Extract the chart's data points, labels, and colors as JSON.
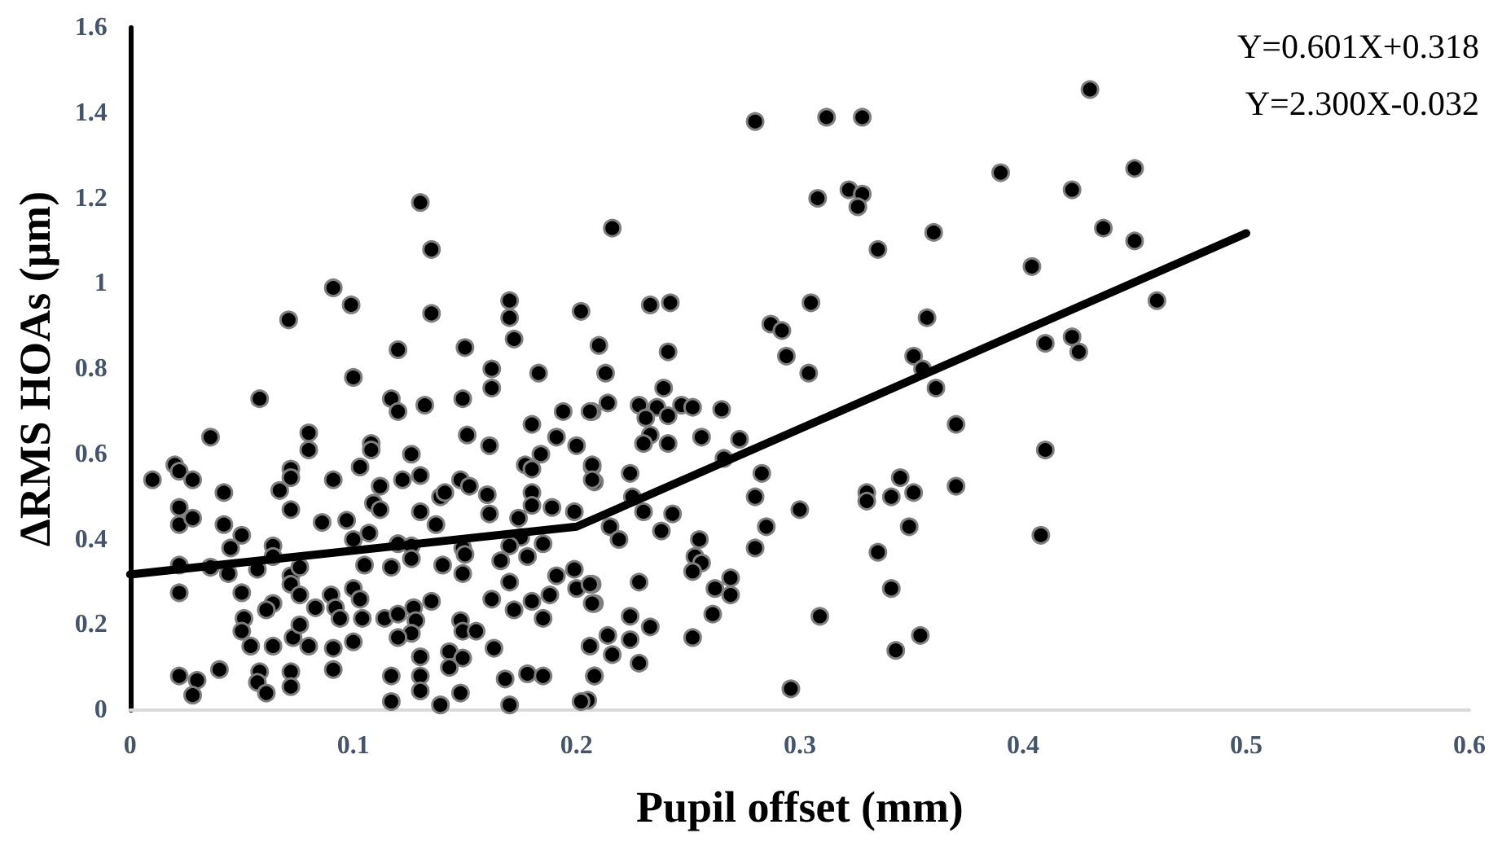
{
  "chart_data": {
    "type": "scatter",
    "xlabel": "Pupil offset (mm)",
    "ylabel": "ΔRMS HOAs (μm)",
    "xlim": [
      0,
      0.6
    ],
    "xticks": [
      0,
      0.1,
      0.2,
      0.3,
      0.4,
      0.5,
      0.6
    ],
    "ylim": [
      0,
      1.6
    ],
    "yticks": [
      0,
      0.2,
      0.4,
      0.6,
      0.8,
      1,
      1.2,
      1.4,
      1.6
    ],
    "grid": false,
    "marker": "circle",
    "annotations": [
      "Y=0.601X+0.318",
      "Y=2.300X-0.032"
    ],
    "series": [
      {
        "color": "#000000",
        "x": [
          0.43,
          0.45,
          0.422,
          0.436,
          0.45,
          0.46,
          0.41,
          0.422,
          0.425,
          0.41,
          0.408,
          0.28,
          0.312,
          0.328,
          0.39,
          0.308,
          0.322,
          0.328,
          0.326,
          0.216,
          0.335,
          0.36,
          0.404,
          0.233,
          0.242,
          0.305,
          0.287,
          0.292,
          0.294,
          0.241,
          0.21,
          0.304,
          0.357,
          0.351,
          0.355,
          0.361,
          0.37,
          0.213,
          0.214,
          0.207,
          0.239,
          0.228,
          0.236,
          0.247,
          0.252,
          0.265,
          0.231,
          0.241,
          0.233,
          0.23,
          0.241,
          0.256,
          0.273,
          0.266,
          0.207,
          0.208,
          0.224,
          0.283,
          0.28,
          0.225,
          0.23,
          0.243,
          0.3,
          0.33,
          0.33,
          0.341,
          0.345,
          0.351,
          0.37,
          0.349,
          0.215,
          0.219,
          0.238,
          0.285,
          0.28,
          0.255,
          0.253,
          0.256,
          0.252,
          0.269,
          0.262,
          0.269,
          0.261,
          0.228,
          0.207,
          0.208,
          0.335,
          0.341,
          0.309,
          0.224,
          0.233,
          0.214,
          0.224,
          0.216,
          0.228,
          0.252,
          0.208,
          0.343,
          0.354,
          0.296,
          0.205,
          0.135,
          0.091,
          0.099,
          0.071,
          0.135,
          0.17,
          0.17,
          0.172,
          0.202,
          0.12,
          0.15,
          0.1,
          0.162,
          0.162,
          0.183,
          0.117,
          0.12,
          0.132,
          0.149,
          0.058,
          0.194,
          0.206,
          0.036,
          0.08,
          0.08,
          0.151,
          0.161,
          0.18,
          0.191,
          0.2,
          0.184,
          0.108,
          0.108,
          0.126,
          0.02,
          0.022,
          0.01,
          0.028,
          0.072,
          0.072,
          0.103,
          0.091,
          0.13,
          0.122,
          0.112,
          0.148,
          0.152,
          0.177,
          0.18,
          0.207,
          0.207,
          0.042,
          0.022,
          0.067,
          0.072,
          0.086,
          0.097,
          0.109,
          0.112,
          0.13,
          0.137,
          0.139,
          0.141,
          0.16,
          0.161,
          0.18,
          0.18,
          0.189,
          0.199,
          0.022,
          0.028,
          0.042,
          0.05,
          0.045,
          0.064,
          0.1,
          0.107,
          0.12,
          0.126,
          0.149,
          0.174,
          0.175,
          0.185,
          0.17,
          0.022,
          0.036,
          0.044,
          0.057,
          0.064,
          0.072,
          0.076,
          0.105,
          0.117,
          0.126,
          0.14,
          0.149,
          0.15,
          0.166,
          0.178,
          0.17,
          0.191,
          0.199,
          0.2,
          0.022,
          0.05,
          0.064,
          0.061,
          0.072,
          0.076,
          0.083,
          0.09,
          0.092,
          0.094,
          0.1,
          0.103,
          0.104,
          0.114,
          0.12,
          0.127,
          0.128,
          0.126,
          0.12,
          0.135,
          0.148,
          0.149,
          0.155,
          0.162,
          0.172,
          0.18,
          0.185,
          0.188,
          0.206,
          0.207,
          0.051,
          0.05,
          0.054,
          0.064,
          0.073,
          0.076,
          0.08,
          0.091,
          0.1,
          0.13,
          0.143,
          0.149,
          0.163,
          0.206,
          0.022,
          0.03,
          0.028,
          0.04,
          0.058,
          0.057,
          0.061,
          0.072,
          0.072,
          0.091,
          0.117,
          0.117,
          0.13,
          0.13,
          0.139,
          0.148,
          0.143,
          0.168,
          0.17,
          0.178,
          0.185,
          0.202,
          0.208,
          0.13
        ],
        "values": [
          1.455,
          1.27,
          1.22,
          1.13,
          1.1,
          0.96,
          0.86,
          0.875,
          0.84,
          0.61,
          0.41,
          1.38,
          1.39,
          1.39,
          1.26,
          1.2,
          1.22,
          1.21,
          1.18,
          1.13,
          1.08,
          1.12,
          1.04,
          0.95,
          0.955,
          0.955,
          0.905,
          0.89,
          0.83,
          0.84,
          0.855,
          0.79,
          0.92,
          0.83,
          0.8,
          0.755,
          0.67,
          0.79,
          0.72,
          0.7,
          0.755,
          0.715,
          0.71,
          0.715,
          0.71,
          0.705,
          0.685,
          0.69,
          0.645,
          0.625,
          0.625,
          0.64,
          0.635,
          0.59,
          0.57,
          0.535,
          0.555,
          0.555,
          0.5,
          0.5,
          0.465,
          0.46,
          0.47,
          0.51,
          0.49,
          0.5,
          0.545,
          0.51,
          0.525,
          0.43,
          0.43,
          0.4,
          0.42,
          0.43,
          0.38,
          0.4,
          0.36,
          0.345,
          0.325,
          0.31,
          0.285,
          0.27,
          0.225,
          0.3,
          0.295,
          0.25,
          0.37,
          0.285,
          0.22,
          0.22,
          0.195,
          0.175,
          0.165,
          0.13,
          0.11,
          0.17,
          0.08,
          0.14,
          0.175,
          0.05,
          0.023,
          1.08,
          0.99,
          0.95,
          0.915,
          0.93,
          0.96,
          0.92,
          0.87,
          0.935,
          0.845,
          0.85,
          0.78,
          0.8,
          0.755,
          0.79,
          0.73,
          0.7,
          0.715,
          0.73,
          0.73,
          0.7,
          0.7,
          0.64,
          0.65,
          0.61,
          0.645,
          0.62,
          0.67,
          0.64,
          0.62,
          0.6,
          0.625,
          0.61,
          0.6,
          0.575,
          0.56,
          0.54,
          0.54,
          0.565,
          0.545,
          0.57,
          0.54,
          0.55,
          0.54,
          0.525,
          0.54,
          0.525,
          0.575,
          0.565,
          0.575,
          0.54,
          0.51,
          0.475,
          0.515,
          0.47,
          0.44,
          0.445,
          0.485,
          0.47,
          0.465,
          0.435,
          0.5,
          0.51,
          0.505,
          0.46,
          0.51,
          0.48,
          0.475,
          0.465,
          0.435,
          0.45,
          0.435,
          0.41,
          0.38,
          0.385,
          0.4,
          0.415,
          0.39,
          0.385,
          0.38,
          0.45,
          0.405,
          0.39,
          0.385,
          0.34,
          0.335,
          0.32,
          0.33,
          0.36,
          0.315,
          0.335,
          0.34,
          0.335,
          0.355,
          0.34,
          0.32,
          0.365,
          0.35,
          0.36,
          0.3,
          0.315,
          0.33,
          0.285,
          0.275,
          0.275,
          0.25,
          0.235,
          0.295,
          0.27,
          0.24,
          0.27,
          0.24,
          0.215,
          0.285,
          0.26,
          0.215,
          0.215,
          0.225,
          0.24,
          0.21,
          0.18,
          0.17,
          0.255,
          0.21,
          0.185,
          0.185,
          0.26,
          0.235,
          0.255,
          0.215,
          0.27,
          0.295,
          0.25,
          0.215,
          0.185,
          0.15,
          0.15,
          0.17,
          0.2,
          0.15,
          0.145,
          0.16,
          0.125,
          0.137,
          0.122,
          0.145,
          0.15,
          0.08,
          0.07,
          0.035,
          0.095,
          0.09,
          0.065,
          0.04,
          0.09,
          0.055,
          0.095,
          0.08,
          0.02,
          0.08,
          0.045,
          0.012,
          0.04,
          0.1,
          0.073,
          0.012,
          0.085,
          0.08,
          0.02,
          0.08,
          1.19
        ]
      },
      {
        "type": "line",
        "color": "#000000",
        "marker": "none",
        "line_style": "solid",
        "x": [
          0,
          0.2,
          0.5
        ],
        "values": [
          0.318,
          0.43,
          1.118
        ]
      }
    ]
  }
}
